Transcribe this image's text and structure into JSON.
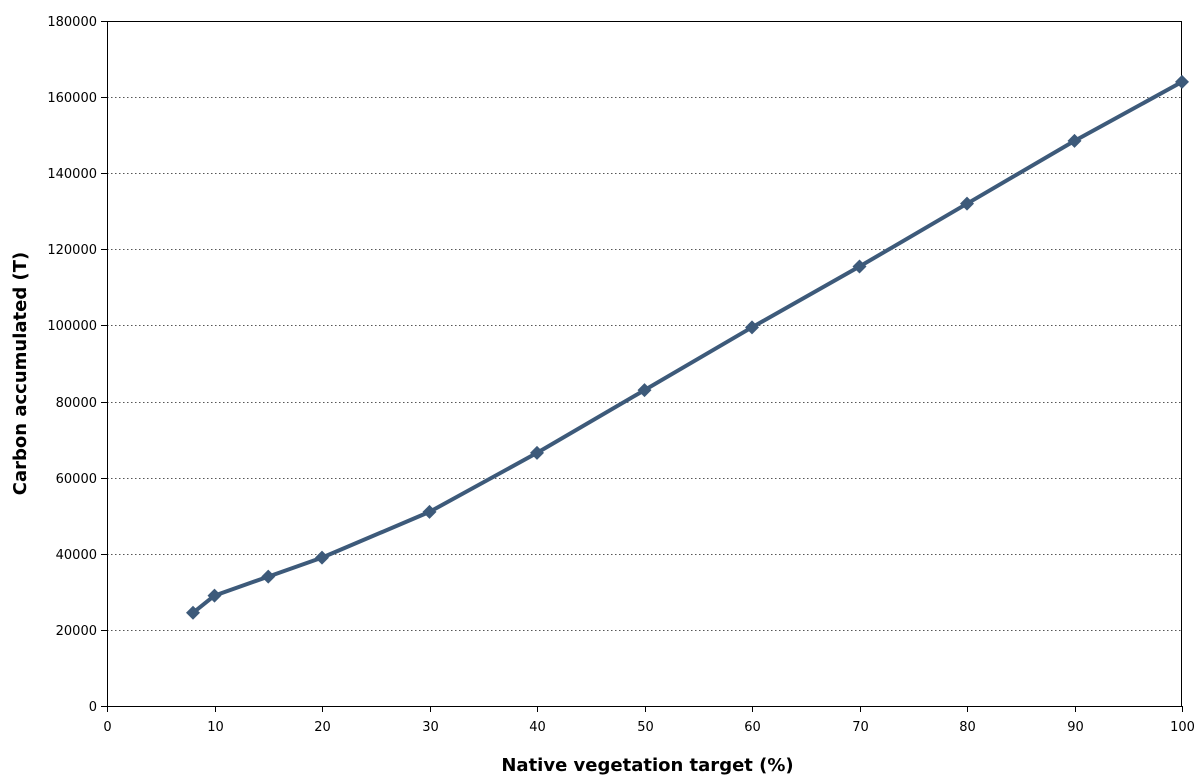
{
  "chart_data": {
    "type": "line",
    "title": "",
    "xlabel": "Native vegetation target (%)",
    "ylabel": "Carbon accumulated (T)",
    "xlim": [
      0,
      100
    ],
    "ylim": [
      0,
      180000
    ],
    "x_ticks": [
      0,
      10,
      20,
      30,
      40,
      50,
      60,
      70,
      80,
      90,
      100
    ],
    "y_ticks": [
      0,
      20000,
      40000,
      60000,
      80000,
      100000,
      120000,
      140000,
      160000,
      180000
    ],
    "x_tick_labels": [
      "0",
      "10",
      "20",
      "30",
      "40",
      "50",
      "60",
      "70",
      "80",
      "90",
      "100"
    ],
    "y_tick_labels": [
      "0",
      "20000",
      "40000",
      "60000",
      "80000",
      "100000",
      "120000",
      "140000",
      "160000",
      "180000"
    ],
    "grid": "horizontal dotted",
    "legend": "none",
    "series": [
      {
        "marker": "diamond",
        "color": "#3d5a7a",
        "x": [
          8,
          10,
          15,
          20,
          30,
          40,
          50,
          60,
          70,
          80,
          90,
          100
        ],
        "y": [
          24500,
          29000,
          34000,
          39000,
          51000,
          66500,
          83000,
          99500,
          115500,
          132000,
          148500,
          164000
        ]
      }
    ]
  }
}
